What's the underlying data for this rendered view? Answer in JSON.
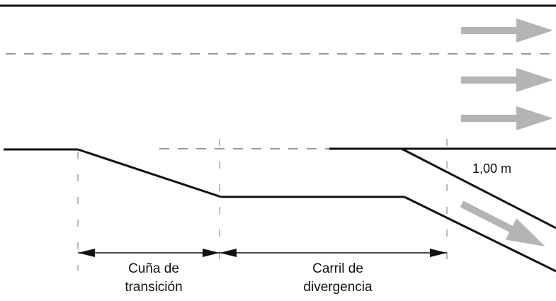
{
  "diagram": {
    "colors": {
      "line": "#111111",
      "dash": "#777777",
      "arrow": "#b4b4b4",
      "background": "#ffffff"
    },
    "labels": {
      "lane_width": "1,00 m",
      "taper_line1": "Cuña de",
      "taper_line2": "transición",
      "lane_line1": "Carril de",
      "lane_line2": "divergencia"
    },
    "lanes": {
      "through_arrows": 3,
      "diverging_arrows": 1
    }
  }
}
